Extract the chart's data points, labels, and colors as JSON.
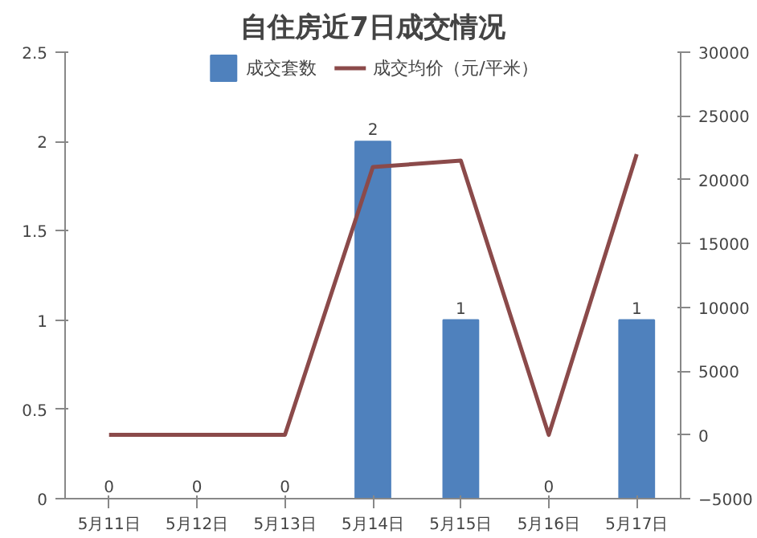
{
  "chart_data": {
    "type": "bar",
    "title": "自住房近7日成交情况",
    "categories": [
      "5月11日",
      "5月12日",
      "5月13日",
      "5月14日",
      "5月15日",
      "5月16日",
      "5月17日"
    ],
    "series": [
      {
        "name": "成交套数",
        "color": "#4f81bd",
        "values": [
          0,
          0,
          0,
          2,
          1,
          0,
          1
        ],
        "value_labels": [
          "0",
          "0",
          "0",
          "2",
          "1",
          "0",
          "1"
        ]
      },
      {
        "name": "成交均价（元/平米）",
        "type": "line",
        "axis": "y2",
        "color": "#8b4a4a",
        "values": [
          0,
          0,
          0,
          21000,
          21500,
          0,
          22000
        ]
      }
    ],
    "ylim": [
      0,
      2.5
    ],
    "yticks": [
      0,
      0.5,
      1,
      1.5,
      2,
      2.5
    ],
    "y2lim": [
      -5000,
      30000
    ],
    "y2ticks": [
      -5000,
      0,
      5000,
      10000,
      15000,
      20000,
      25000,
      30000
    ],
    "legend": "top",
    "grid": false
  }
}
